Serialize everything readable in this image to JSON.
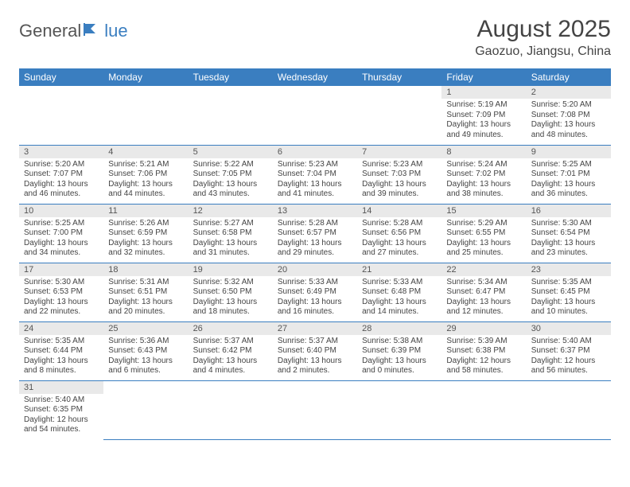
{
  "logo": {
    "text_left": "General",
    "text_right": "lue",
    "brand_color": "#3a7ec0",
    "text_color": "#555"
  },
  "title": "August 2025",
  "location": "Gaozuo, Jiangsu, China",
  "colors": {
    "header_bg": "#3a7ec0",
    "header_fg": "#ffffff",
    "daynum_bg": "#e9e9e9",
    "body_fg": "#444",
    "divider": "#3a7ec0"
  },
  "dow": [
    "Sunday",
    "Monday",
    "Tuesday",
    "Wednesday",
    "Thursday",
    "Friday",
    "Saturday"
  ],
  "weeks": [
    [
      null,
      null,
      null,
      null,
      null,
      {
        "n": "1",
        "sr": "5:19 AM",
        "ss": "7:09 PM",
        "dl": "13 hours and 49 minutes."
      },
      {
        "n": "2",
        "sr": "5:20 AM",
        "ss": "7:08 PM",
        "dl": "13 hours and 48 minutes."
      }
    ],
    [
      {
        "n": "3",
        "sr": "5:20 AM",
        "ss": "7:07 PM",
        "dl": "13 hours and 46 minutes."
      },
      {
        "n": "4",
        "sr": "5:21 AM",
        "ss": "7:06 PM",
        "dl": "13 hours and 44 minutes."
      },
      {
        "n": "5",
        "sr": "5:22 AM",
        "ss": "7:05 PM",
        "dl": "13 hours and 43 minutes."
      },
      {
        "n": "6",
        "sr": "5:23 AM",
        "ss": "7:04 PM",
        "dl": "13 hours and 41 minutes."
      },
      {
        "n": "7",
        "sr": "5:23 AM",
        "ss": "7:03 PM",
        "dl": "13 hours and 39 minutes."
      },
      {
        "n": "8",
        "sr": "5:24 AM",
        "ss": "7:02 PM",
        "dl": "13 hours and 38 minutes."
      },
      {
        "n": "9",
        "sr": "5:25 AM",
        "ss": "7:01 PM",
        "dl": "13 hours and 36 minutes."
      }
    ],
    [
      {
        "n": "10",
        "sr": "5:25 AM",
        "ss": "7:00 PM",
        "dl": "13 hours and 34 minutes."
      },
      {
        "n": "11",
        "sr": "5:26 AM",
        "ss": "6:59 PM",
        "dl": "13 hours and 32 minutes."
      },
      {
        "n": "12",
        "sr": "5:27 AM",
        "ss": "6:58 PM",
        "dl": "13 hours and 31 minutes."
      },
      {
        "n": "13",
        "sr": "5:28 AM",
        "ss": "6:57 PM",
        "dl": "13 hours and 29 minutes."
      },
      {
        "n": "14",
        "sr": "5:28 AM",
        "ss": "6:56 PM",
        "dl": "13 hours and 27 minutes."
      },
      {
        "n": "15",
        "sr": "5:29 AM",
        "ss": "6:55 PM",
        "dl": "13 hours and 25 minutes."
      },
      {
        "n": "16",
        "sr": "5:30 AM",
        "ss": "6:54 PM",
        "dl": "13 hours and 23 minutes."
      }
    ],
    [
      {
        "n": "17",
        "sr": "5:30 AM",
        "ss": "6:53 PM",
        "dl": "13 hours and 22 minutes."
      },
      {
        "n": "18",
        "sr": "5:31 AM",
        "ss": "6:51 PM",
        "dl": "13 hours and 20 minutes."
      },
      {
        "n": "19",
        "sr": "5:32 AM",
        "ss": "6:50 PM",
        "dl": "13 hours and 18 minutes."
      },
      {
        "n": "20",
        "sr": "5:33 AM",
        "ss": "6:49 PM",
        "dl": "13 hours and 16 minutes."
      },
      {
        "n": "21",
        "sr": "5:33 AM",
        "ss": "6:48 PM",
        "dl": "13 hours and 14 minutes."
      },
      {
        "n": "22",
        "sr": "5:34 AM",
        "ss": "6:47 PM",
        "dl": "13 hours and 12 minutes."
      },
      {
        "n": "23",
        "sr": "5:35 AM",
        "ss": "6:45 PM",
        "dl": "13 hours and 10 minutes."
      }
    ],
    [
      {
        "n": "24",
        "sr": "5:35 AM",
        "ss": "6:44 PM",
        "dl": "13 hours and 8 minutes."
      },
      {
        "n": "25",
        "sr": "5:36 AM",
        "ss": "6:43 PM",
        "dl": "13 hours and 6 minutes."
      },
      {
        "n": "26",
        "sr": "5:37 AM",
        "ss": "6:42 PM",
        "dl": "13 hours and 4 minutes."
      },
      {
        "n": "27",
        "sr": "5:37 AM",
        "ss": "6:40 PM",
        "dl": "13 hours and 2 minutes."
      },
      {
        "n": "28",
        "sr": "5:38 AM",
        "ss": "6:39 PM",
        "dl": "13 hours and 0 minutes."
      },
      {
        "n": "29",
        "sr": "5:39 AM",
        "ss": "6:38 PM",
        "dl": "12 hours and 58 minutes."
      },
      {
        "n": "30",
        "sr": "5:40 AM",
        "ss": "6:37 PM",
        "dl": "12 hours and 56 minutes."
      }
    ],
    [
      {
        "n": "31",
        "sr": "5:40 AM",
        "ss": "6:35 PM",
        "dl": "12 hours and 54 minutes."
      },
      null,
      null,
      null,
      null,
      null,
      null
    ]
  ],
  "labels": {
    "sunrise": "Sunrise:",
    "sunset": "Sunset:",
    "daylight": "Daylight:"
  }
}
